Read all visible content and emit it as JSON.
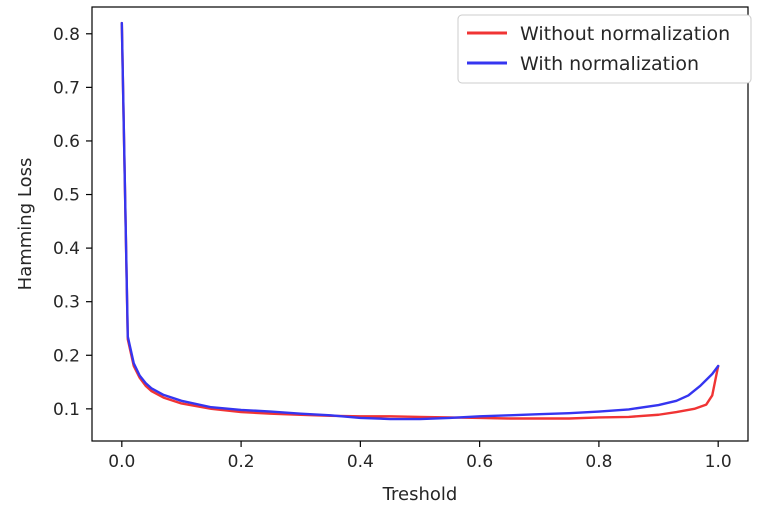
{
  "chart_data": {
    "type": "line",
    "title": "",
    "xlabel": "Treshold",
    "ylabel": "Hamming Loss",
    "xlim": [
      -0.05,
      1.05
    ],
    "ylim": [
      0.04,
      0.85
    ],
    "x_ticks": [
      0.0,
      0.2,
      0.4,
      0.6,
      0.8,
      1.0
    ],
    "x_tick_labels": [
      "0.0",
      "0.2",
      "0.4",
      "0.6",
      "0.8",
      "1.0"
    ],
    "y_ticks": [
      0.1,
      0.2,
      0.3,
      0.4,
      0.5,
      0.6,
      0.7,
      0.8
    ],
    "y_tick_labels": [
      "0.1",
      "0.2",
      "0.3",
      "0.4",
      "0.5",
      "0.6",
      "0.7",
      "0.8"
    ],
    "grid": false,
    "legend_position": "upper right",
    "series": [
      {
        "name": "Without normalization",
        "color": "#f03434",
        "x": [
          0.0,
          0.01,
          0.02,
          0.03,
          0.04,
          0.05,
          0.07,
          0.1,
          0.15,
          0.2,
          0.25,
          0.3,
          0.35,
          0.4,
          0.45,
          0.5,
          0.55,
          0.6,
          0.65,
          0.7,
          0.75,
          0.8,
          0.85,
          0.9,
          0.93,
          0.96,
          0.98,
          0.99,
          1.0
        ],
        "y": [
          0.82,
          0.23,
          0.18,
          0.158,
          0.143,
          0.133,
          0.121,
          0.11,
          0.1,
          0.094,
          0.091,
          0.089,
          0.087,
          0.086,
          0.086,
          0.085,
          0.084,
          0.083,
          0.082,
          0.082,
          0.082,
          0.084,
          0.085,
          0.089,
          0.094,
          0.1,
          0.108,
          0.125,
          0.18
        ]
      },
      {
        "name": "With normalization",
        "color": "#3535f0",
        "x": [
          0.0,
          0.01,
          0.02,
          0.03,
          0.04,
          0.05,
          0.07,
          0.1,
          0.15,
          0.2,
          0.25,
          0.3,
          0.35,
          0.4,
          0.45,
          0.5,
          0.55,
          0.6,
          0.65,
          0.7,
          0.75,
          0.8,
          0.85,
          0.9,
          0.93,
          0.95,
          0.97,
          0.99,
          1.0
        ],
        "y": [
          0.82,
          0.235,
          0.185,
          0.162,
          0.148,
          0.138,
          0.126,
          0.115,
          0.103,
          0.098,
          0.095,
          0.091,
          0.088,
          0.083,
          0.081,
          0.081,
          0.083,
          0.086,
          0.088,
          0.09,
          0.092,
          0.095,
          0.099,
          0.107,
          0.115,
          0.125,
          0.143,
          0.165,
          0.18
        ]
      }
    ]
  }
}
